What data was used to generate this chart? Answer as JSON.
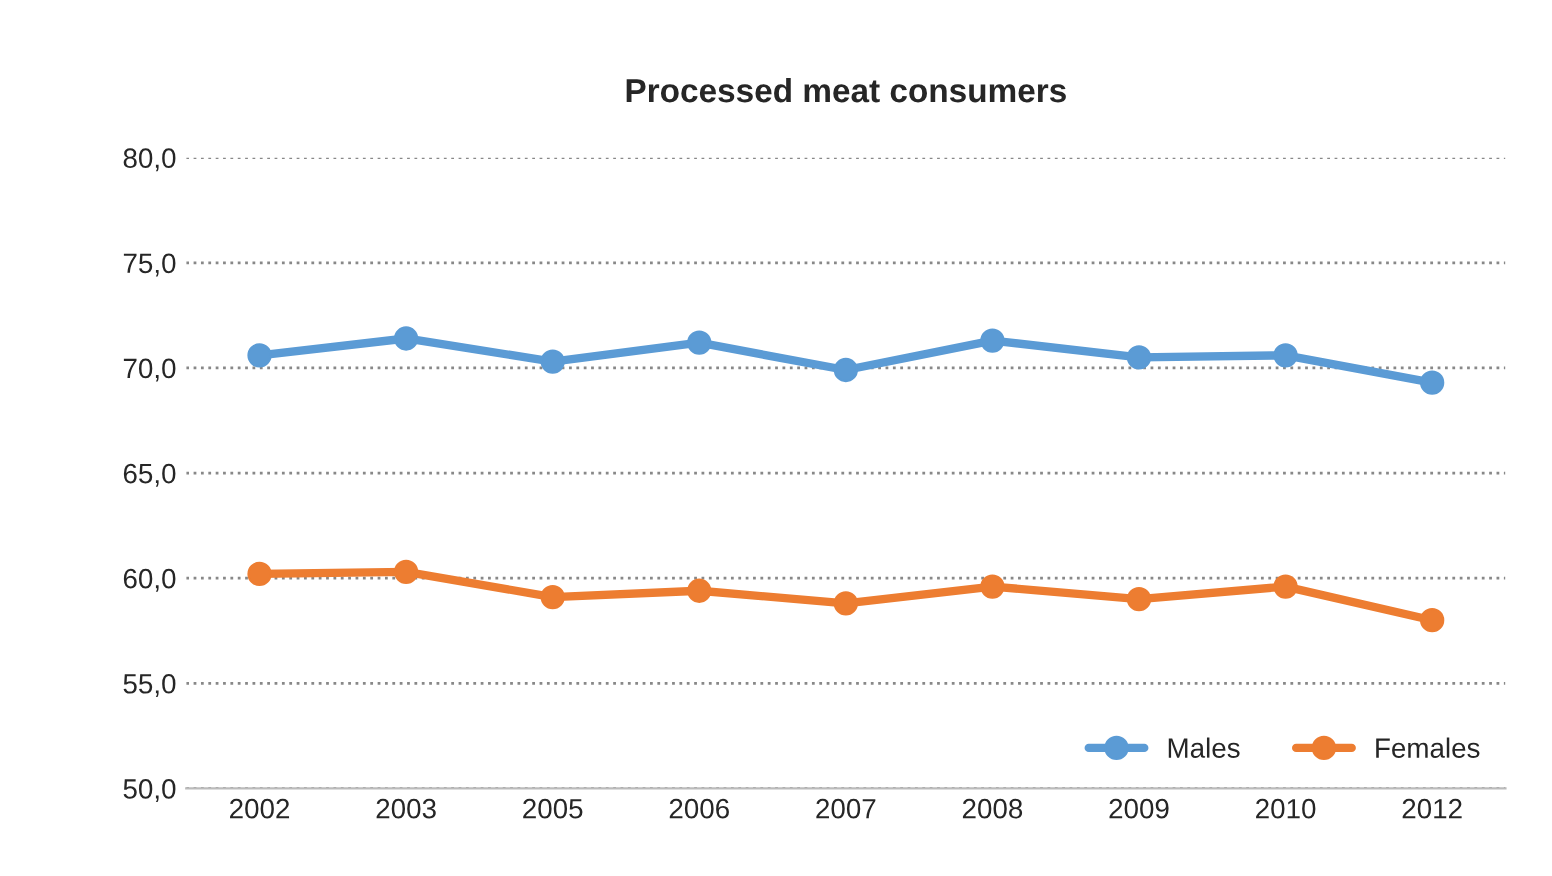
{
  "chart_data": {
    "type": "line",
    "title": "Processed meat consumers",
    "categories": [
      "2002",
      "2003",
      "2005",
      "2006",
      "2007",
      "2008",
      "2009",
      "2010",
      "2012"
    ],
    "series": [
      {
        "name": "Males",
        "color": "#5b9bd5",
        "values": [
          70.6,
          71.4,
          70.3,
          71.2,
          69.9,
          71.3,
          70.5,
          70.6,
          69.3
        ]
      },
      {
        "name": "Females",
        "color": "#ed7d31",
        "values": [
          60.2,
          60.3,
          59.1,
          59.4,
          58.8,
          59.6,
          59.0,
          59.6,
          58.0
        ]
      }
    ],
    "ylim": [
      50,
      80
    ],
    "yticks": [
      {
        "value": 50,
        "label": "50,0"
      },
      {
        "value": 55,
        "label": "55,0"
      },
      {
        "value": 60,
        "label": "60,0"
      },
      {
        "value": 65,
        "label": "65,0"
      },
      {
        "value": 70,
        "label": "70,0"
      },
      {
        "value": 75,
        "label": "75,0"
      },
      {
        "value": 80,
        "label": "80,0"
      }
    ],
    "grid": "y",
    "legend": "bottom right",
    "marker": "circle",
    "line_style": "solid"
  }
}
